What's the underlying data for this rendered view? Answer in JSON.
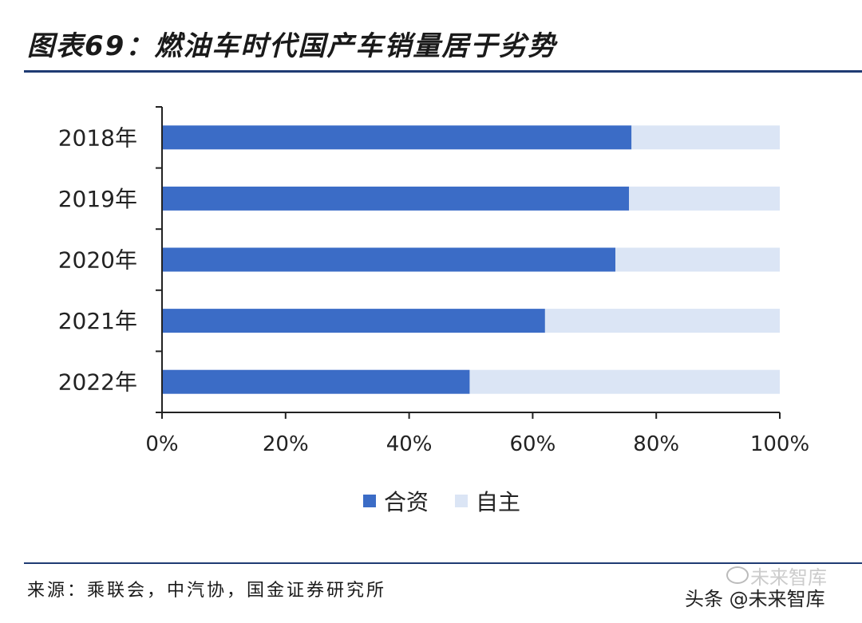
{
  "title": "图表69：燃油车时代国产车销量居于劣势",
  "source": "来源：乘联会，中汽协，国金证券研究所",
  "watermark": "头条 @未来智库",
  "watermark_faint": "未来智库",
  "colors": {
    "joint_venture": "#3b6cc6",
    "domestic": "#dbe5f5",
    "axis": "#222222",
    "rule": "#1f3b73"
  },
  "chart_data": {
    "type": "bar",
    "orientation": "horizontal",
    "stacked": "percent",
    "categories": [
      "2018年",
      "2019年",
      "2020年",
      "2021年",
      "2022年"
    ],
    "series": [
      {
        "name": "合资",
        "values": [
          76,
          75.6,
          73.4,
          62,
          49.8
        ]
      },
      {
        "name": "自主",
        "values": [
          24,
          24.4,
          26.6,
          38,
          50.2
        ]
      }
    ],
    "xlim": [
      0,
      100
    ],
    "xticks": [
      "0%",
      "20%",
      "40%",
      "60%",
      "80%",
      "100%"
    ],
    "legend_position": "bottom-center",
    "grid": false
  }
}
